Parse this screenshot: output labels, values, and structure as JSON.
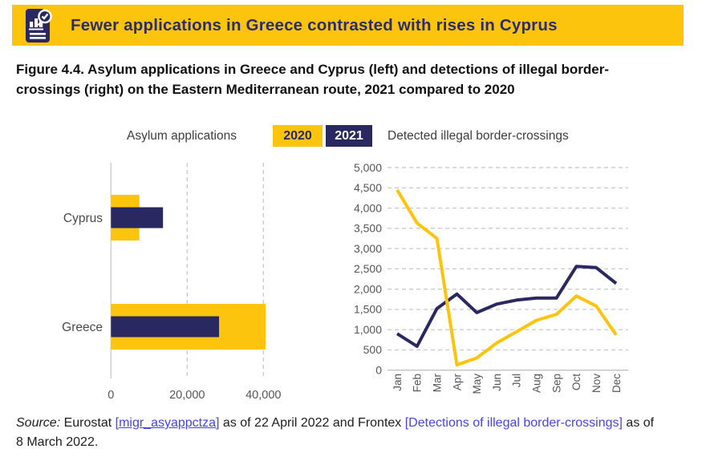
{
  "header": {
    "title": "Fewer applications in Greece contrasted with rises in Cyprus"
  },
  "figure": {
    "caption": "Figure 4.4. Asylum applications in Greece and Cyprus (left) and detections of illegal border-crossings (right) on the Eastern Mediterranean route, 2021 compared to 2020"
  },
  "legend": {
    "left_chart_label": "Asylum applications",
    "right_chart_label": "Detected illegal border-crossings",
    "years": [
      {
        "label": "2020",
        "color": "#fdc40e"
      },
      {
        "label": "2021",
        "color": "#2a2860"
      }
    ]
  },
  "colors": {
    "accent_yellow": "#fdc40e",
    "brand_navy": "#2a2860",
    "gridline_gray": "#cdcdcd",
    "axis_text_gray": "#555555",
    "link_blue": "#4545e8"
  },
  "chart_data": [
    {
      "type": "bar",
      "orientation": "horizontal",
      "title": "Asylum applications",
      "categories": [
        "Cyprus",
        "Greece"
      ],
      "series": [
        {
          "name": "2020",
          "color": "#fdc40e",
          "values": [
            7440,
            40560
          ]
        },
        {
          "name": "2021",
          "color": "#2a2860",
          "values": [
            13660,
            28360
          ]
        }
      ],
      "x_ticks": [
        {
          "label": "0",
          "value": 0
        },
        {
          "label": "20,000",
          "value": 20000
        },
        {
          "label": "40,000",
          "value": 40000
        }
      ],
      "xlim": [
        0,
        44000
      ],
      "gridlines": "vertical-dashed",
      "legend_position": "top"
    },
    {
      "type": "line",
      "title": "Detected illegal border-crossings",
      "categories": [
        "Jan",
        "Feb",
        "Mar",
        "Apr",
        "May",
        "Jun",
        "Jul",
        "Aug",
        "Sep",
        "Oct",
        "Nov",
        "Dec"
      ],
      "series": [
        {
          "name": "2020",
          "color": "#fdc40e",
          "values": [
            4450,
            3630,
            3250,
            130,
            300,
            670,
            950,
            1230,
            1380,
            1830,
            1580,
            870
          ]
        },
        {
          "name": "2021",
          "color": "#2a2860",
          "values": [
            900,
            590,
            1520,
            1880,
            1420,
            1630,
            1730,
            1780,
            1780,
            2560,
            2530,
            2140
          ]
        }
      ],
      "y_ticks": [
        {
          "label": "0",
          "value": 0
        },
        {
          "label": "500",
          "value": 500
        },
        {
          "label": "1,000",
          "value": 1000
        },
        {
          "label": "1,500",
          "value": 1500
        },
        {
          "label": "2,000",
          "value": 2000
        },
        {
          "label": "2,500",
          "value": 2500
        },
        {
          "label": "3,000",
          "value": 3000
        },
        {
          "label": "3,500",
          "value": 3500
        },
        {
          "label": "4,000",
          "value": 4000
        },
        {
          "label": "4,500",
          "value": 4500
        },
        {
          "label": "5,000",
          "value": 5000
        }
      ],
      "ylim": [
        0,
        5000
      ],
      "gridlines": "horizontal-dashed",
      "legend_position": "top"
    }
  ],
  "source": {
    "label_italic": "Source:",
    "text_1": " Eurostat ",
    "link_1": "[migr_asyappctza]",
    "text_2": " as of 22 April 2022 and Frontex ",
    "link_2": "[Detections of illegal border-crossings]",
    "text_3": " as of 8 March 2022."
  }
}
